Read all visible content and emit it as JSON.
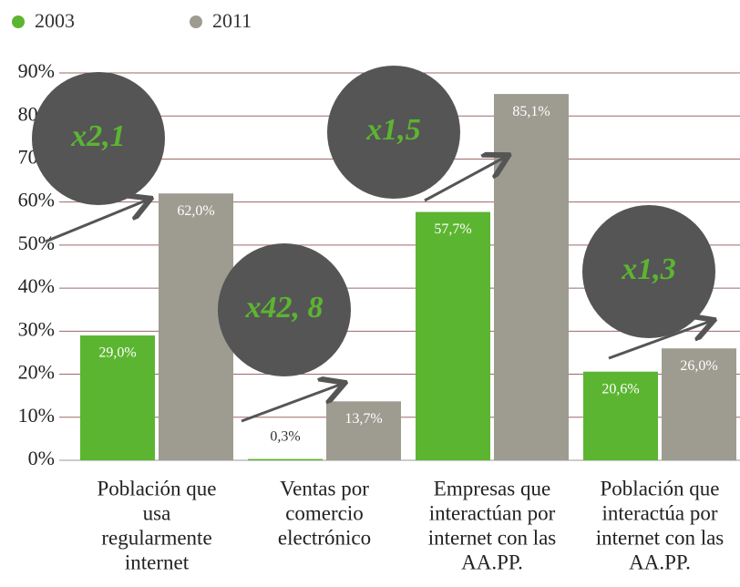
{
  "chart_data": {
    "type": "bar",
    "categories": [
      [
        "Población que",
        "usa",
        "regularmente",
        "internet"
      ],
      [
        "Ventas por",
        "comercio",
        "electrónico"
      ],
      [
        "Empresas que",
        "interactúan por",
        "internet con las",
        "AA.PP."
      ],
      [
        "Población que",
        "interactúa por",
        "internet con las",
        "AA.PP."
      ]
    ],
    "series": [
      {
        "name": "2003",
        "color": "#5cb531",
        "values": [
          29.0,
          0.3,
          57.7,
          20.6
        ],
        "value_labels": [
          "29,0%",
          "0,3%",
          "57,7%",
          "20,6%"
        ]
      },
      {
        "name": "2011",
        "color": "#9e9b90",
        "values": [
          62.0,
          13.7,
          85.1,
          26.0
        ],
        "value_labels": [
          "62,0%",
          "13,7%",
          "85,1%",
          "26,0%"
        ]
      }
    ],
    "annotations": [
      "x2,1",
      "x42, 8",
      "x1,5",
      "x1,3"
    ],
    "ylim": [
      0,
      90
    ],
    "yticks": [
      {
        "value": 0,
        "label": "0%"
      },
      {
        "value": 10,
        "label": "10%"
      },
      {
        "value": 20,
        "label": "20%"
      },
      {
        "value": 30,
        "label": "30%"
      },
      {
        "value": 40,
        "label": "40%"
      },
      {
        "value": 50,
        "label": "50%"
      },
      {
        "value": 60,
        "label": "60%"
      },
      {
        "value": 70,
        "label": "70%"
      },
      {
        "value": 80,
        "label": "80%"
      },
      {
        "value": 90,
        "label": "90%"
      }
    ],
    "grid": true,
    "legend": "top-left"
  }
}
